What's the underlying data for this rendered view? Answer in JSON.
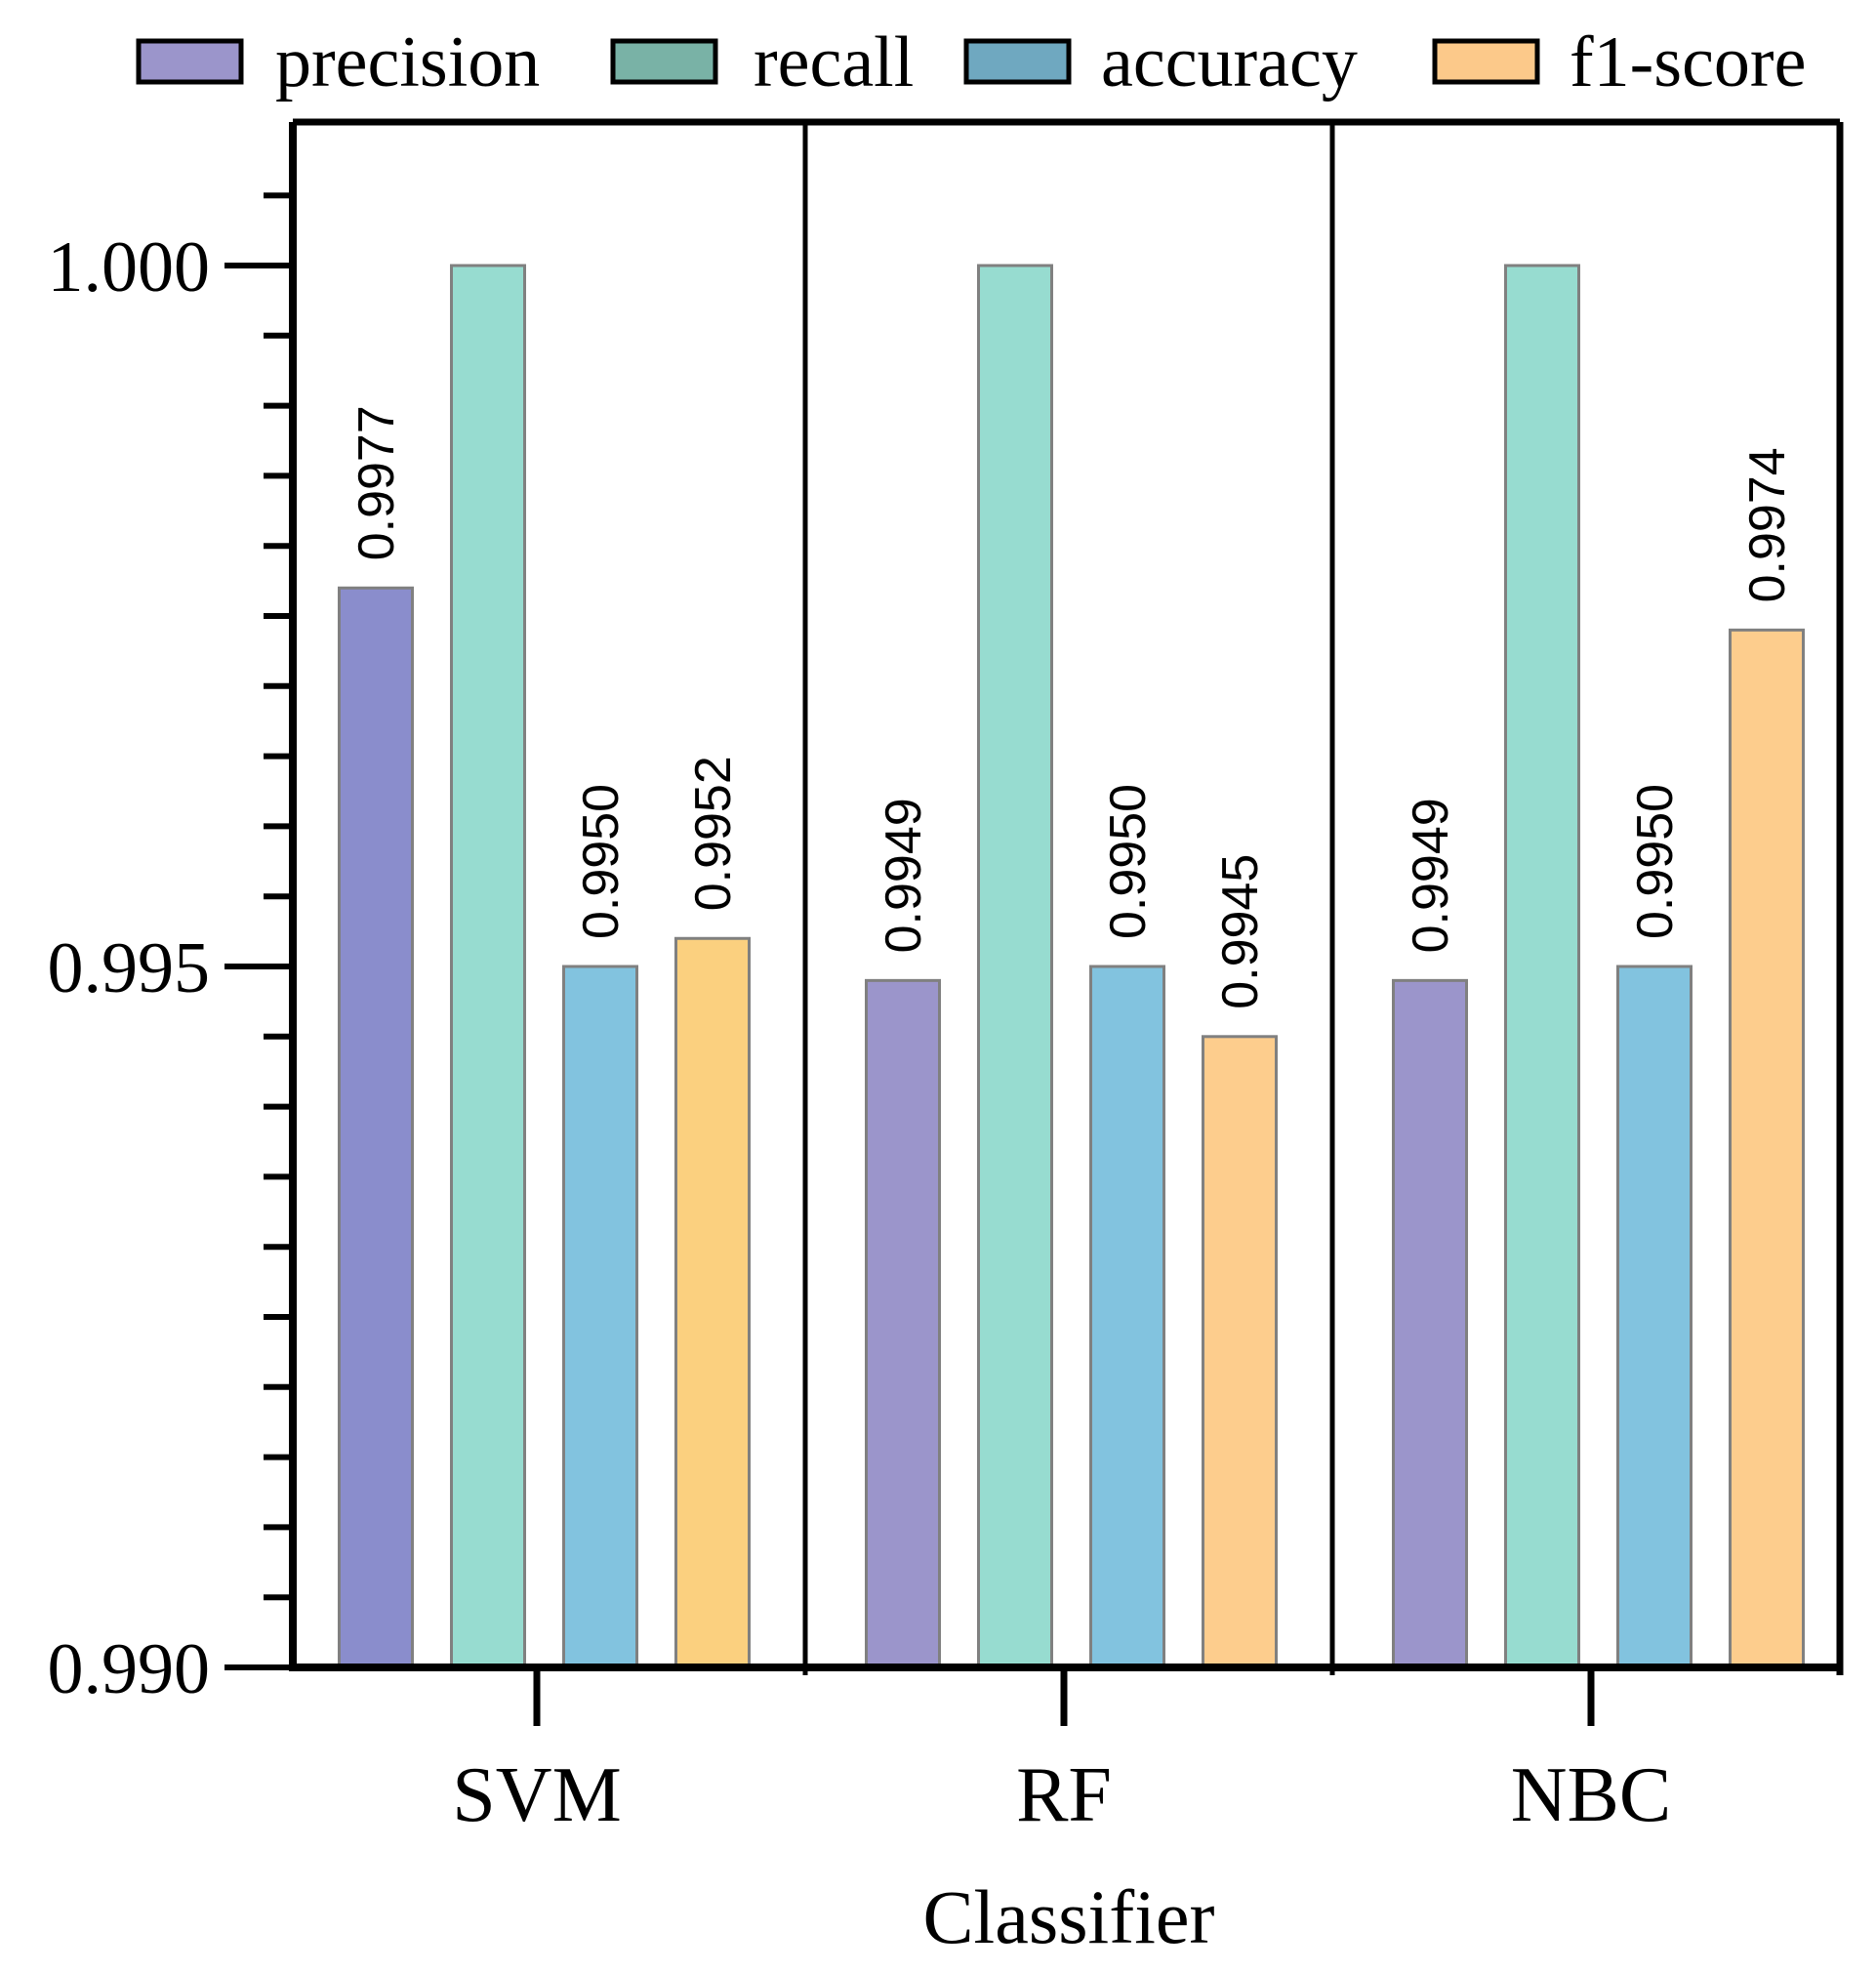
{
  "chart_data": {
    "type": "bar",
    "title": "",
    "xlabel": "Classifier",
    "ylabel": "",
    "ylim": [
      0.99,
      1.001
    ],
    "yticks": [
      0.99,
      0.995,
      1.0
    ],
    "ytick_labels": [
      "0.990",
      "0.995",
      "1.000"
    ],
    "minor_tick_step": 0.0005,
    "grid": false,
    "legend_position": "top",
    "categories": [
      "SVM",
      "RF",
      "NBC"
    ],
    "series": [
      {
        "name": "precision",
        "values": [
          0.9977,
          0.9949,
          0.9949
        ],
        "labels": [
          "0.9977",
          "0.9949",
          "0.9949"
        ],
        "color": "#9b95cb",
        "legend_color": "#9b95cb"
      },
      {
        "name": "recall",
        "values": [
          1.0,
          1.0,
          1.0
        ],
        "labels": [
          "",
          "",
          ""
        ],
        "color": "#97dcd0",
        "legend_color": "#79b2a6"
      },
      {
        "name": "accuracy",
        "values": [
          0.995,
          0.995,
          0.995
        ],
        "labels": [
          "0.9950",
          "0.9950",
          "0.9950"
        ],
        "color": "#82c3df",
        "legend_color": "#6fa8c0"
      },
      {
        "name": "f1-score",
        "values": [
          0.9952,
          0.9945,
          0.9974
        ],
        "labels": [
          "0.9952",
          "0.9945",
          "0.9974"
        ],
        "color": "#fdcd8d",
        "legend_color": "#fcc98a"
      }
    ],
    "bar_colors_by_category": {
      "SVM": {
        "precision": "#8a8dcc",
        "f1-score": "#fbd07f"
      }
    }
  }
}
